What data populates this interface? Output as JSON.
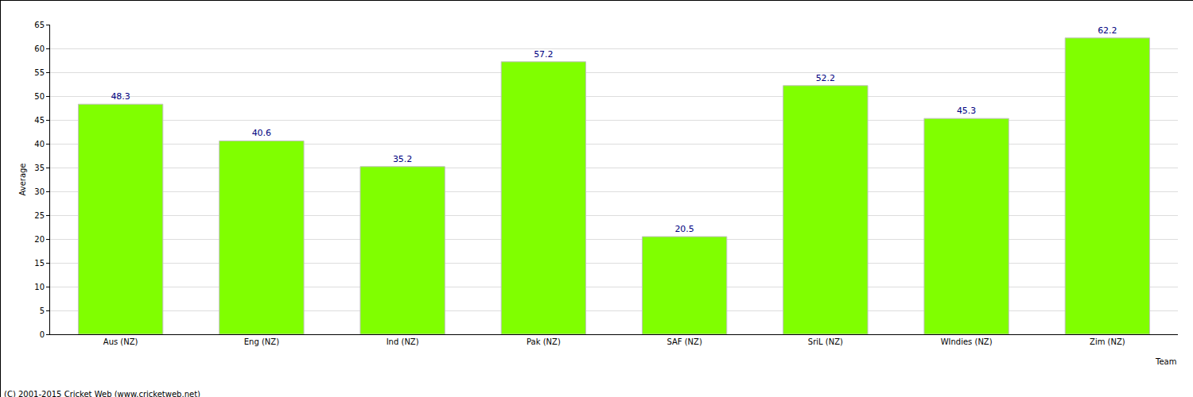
{
  "chart_data": {
    "type": "bar",
    "categories": [
      "Aus (NZ)",
      "Eng (NZ)",
      "Ind (NZ)",
      "Pak (NZ)",
      "SAF (NZ)",
      "SriL (NZ)",
      "WIndies (NZ)",
      "Zim (NZ)"
    ],
    "values": [
      48.3,
      40.6,
      35.2,
      57.2,
      20.5,
      52.2,
      45.3,
      62.2
    ],
    "color": "#80ff00",
    "xlabel": "Team",
    "ylabel": "Average",
    "ylim": [
      0,
      65
    ],
    "yticks": [
      0,
      5,
      10,
      15,
      20,
      25,
      30,
      35,
      40,
      45,
      50,
      55,
      60,
      65
    ],
    "grid": true,
    "data_labels": true,
    "annotations": [
      "(C) 2001-2015 Cricket Web (www.cricketweb.net)"
    ]
  }
}
